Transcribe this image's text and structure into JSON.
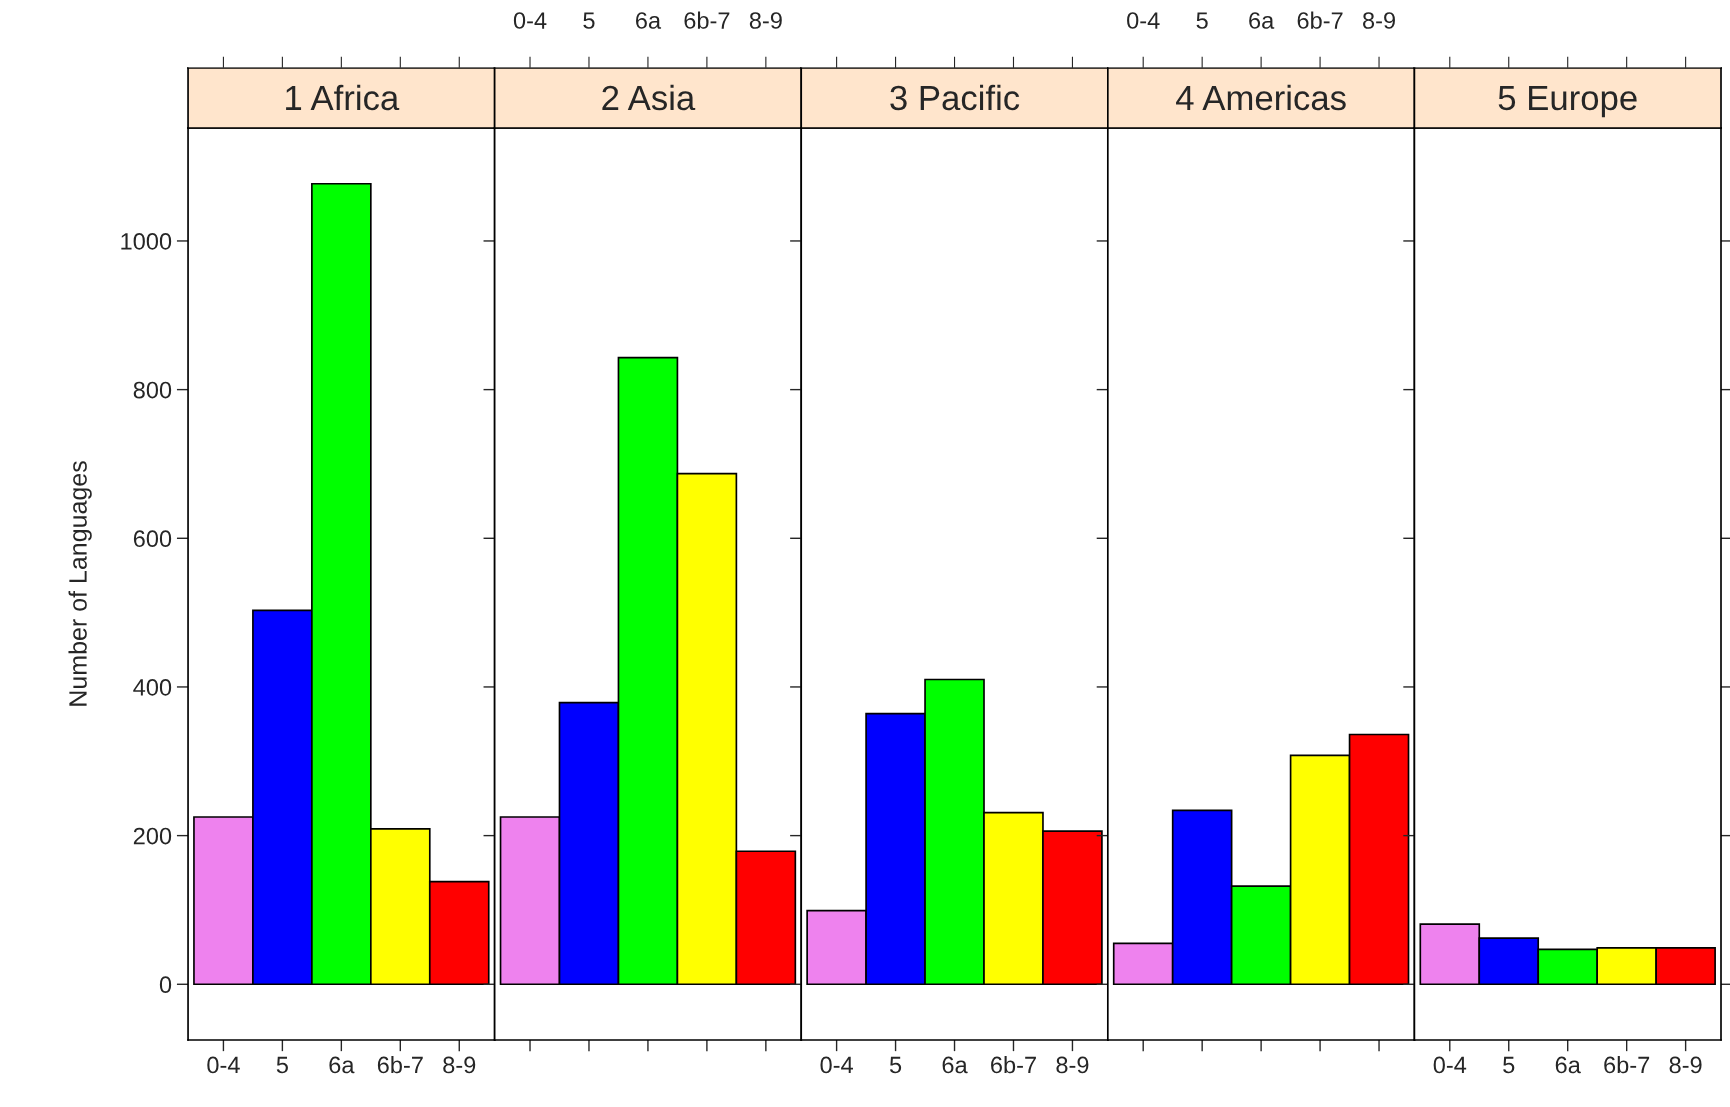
{
  "chart_data": [
    {
      "type": "bar",
      "title": "1 Africa",
      "ylabel": "Number of Languages",
      "categories": [
        "0-4",
        "5",
        "6a",
        "6b-7",
        "8-9"
      ],
      "values": [
        225,
        503,
        1077,
        209,
        138
      ],
      "colors": [
        "#ee82ee",
        "#0000ff",
        "#00ff00",
        "#ffff00",
        "#ff0000"
      ],
      "ylim": [
        -75,
        1152
      ],
      "yticks": [
        0,
        200,
        400,
        600,
        800,
        1000
      ]
    },
    {
      "type": "bar",
      "title": "2 Asia",
      "categories": [
        "0-4",
        "5",
        "6a",
        "6b-7",
        "8-9"
      ],
      "values": [
        225,
        379,
        843,
        687,
        179
      ],
      "colors": [
        "#ee82ee",
        "#0000ff",
        "#00ff00",
        "#ffff00",
        "#ff0000"
      ],
      "ylim": [
        -75,
        1152
      ],
      "yticks": [
        0,
        200,
        400,
        600,
        800,
        1000
      ],
      "tick_labels": "x"
    },
    {
      "type": "bar",
      "title": "3 Pacific",
      "categories": [
        "0-4",
        "5",
        "6a",
        "6b-7",
        "8-9"
      ],
      "values": [
        99,
        364,
        410,
        231,
        206
      ],
      "colors": [
        "#ee82ee",
        "#0000ff",
        "#00ff00",
        "#ffff00",
        "#ff0000"
      ],
      "ylim": [
        -75,
        1152
      ],
      "yticks": [
        0,
        200,
        400,
        600,
        800,
        1000
      ],
      "tick_labels": "x"
    },
    {
      "type": "bar",
      "title": "4 Americas",
      "categories": [
        "0-4",
        "5",
        "6a",
        "6b-7",
        "8-9"
      ],
      "values": [
        55,
        234,
        132,
        308,
        336
      ],
      "colors": [
        "#ee82ee",
        "#0000ff",
        "#00ff00",
        "#ffff00",
        "#ff0000"
      ],
      "ylim": [
        -75,
        1152
      ],
      "yticks": [
        0,
        200,
        400,
        600,
        800,
        1000
      ],
      "tick_labels": "x"
    },
    {
      "type": "bar",
      "title": "5 Europe",
      "categories": [
        "0-4",
        "5",
        "6a",
        "6b-7",
        "8-9"
      ],
      "values": [
        81,
        62,
        47,
        49,
        49
      ],
      "colors": [
        "#ee82ee",
        "#0000ff",
        "#00ff00",
        "#ffff00",
        "#ff0000"
      ],
      "ylim": [
        -75,
        1152
      ],
      "yticks": [
        0,
        200,
        400,
        600,
        800,
        1000
      ],
      "tick_labels": "x"
    }
  ]
}
